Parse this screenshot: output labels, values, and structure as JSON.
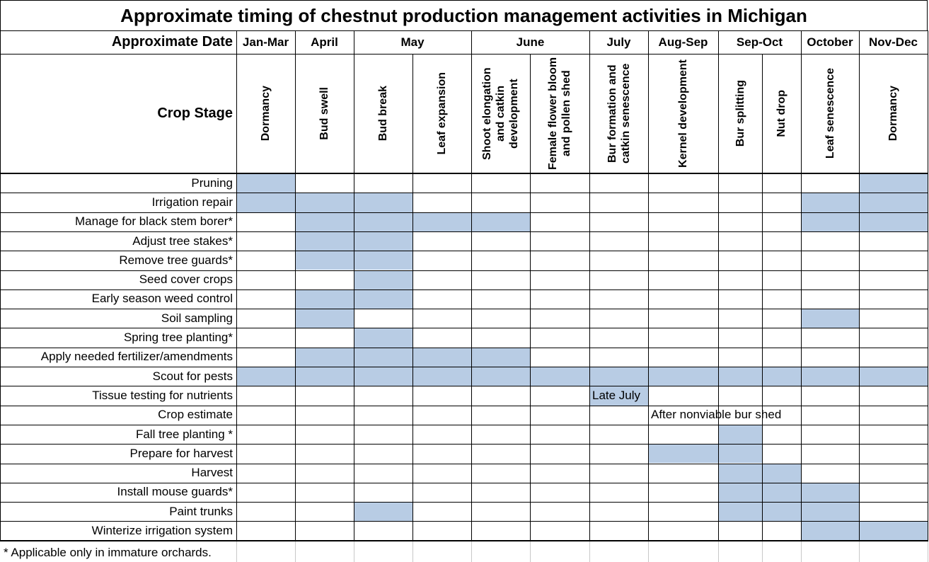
{
  "title": "Approximate timing of chestnut production management activities in Michigan",
  "header": {
    "date_label": "Approximate Date",
    "stage_label": "Crop Stage",
    "months": [
      "Jan-Mar",
      "April",
      "May",
      "June",
      "July",
      "Aug-Sep",
      "Sep-Oct",
      "October",
      "Nov-Dec"
    ],
    "stages": [
      "Dormancy",
      "Bud swell",
      "Bud break",
      "Leaf expansion",
      "Shoot elongation and catkin development",
      "Female flower bloom and pollen shed",
      "Bur formation and catkin senescence",
      "Kernel development",
      "Bur splitting",
      "Nut drop",
      "Leaf senescence",
      "Dormancy"
    ]
  },
  "activities": [
    {
      "label": "Pruning",
      "shaded": [
        [
          0,
          0
        ],
        [
          11,
          11
        ]
      ]
    },
    {
      "label": "Irrigation repair",
      "shaded": [
        [
          0,
          2
        ],
        [
          10,
          11
        ]
      ]
    },
    {
      "label": "Manage for black stem borer*",
      "shaded": [
        [
          1,
          4
        ],
        [
          10,
          11
        ]
      ]
    },
    {
      "label": "Adjust tree stakes*",
      "shaded": [
        [
          1,
          2
        ]
      ]
    },
    {
      "label": "Remove tree guards*",
      "shaded": [
        [
          1,
          2
        ]
      ]
    },
    {
      "label": "Seed cover crops",
      "shaded": [
        [
          2,
          2
        ]
      ]
    },
    {
      "label": "Early season weed control",
      "shaded": [
        [
          1,
          2
        ]
      ]
    },
    {
      "label": "Soil sampling",
      "shaded": [
        [
          1,
          1
        ],
        [
          10,
          10
        ]
      ]
    },
    {
      "label": "Spring tree planting*",
      "shaded": [
        [
          2,
          2
        ]
      ]
    },
    {
      "label": "Apply needed fertilizer/amendments",
      "shaded": [
        [
          1,
          4
        ]
      ]
    },
    {
      "label": "Scout for pests",
      "shaded": [
        [
          0,
          11
        ]
      ]
    },
    {
      "label": "Tissue testing for nutrients",
      "shaded": [
        [
          6,
          6
        ]
      ],
      "note": "Late July",
      "note_col": 6
    },
    {
      "label": "Crop estimate",
      "shaded": [],
      "note": "After nonviable bur shed",
      "note_col": 7
    },
    {
      "label": "Fall tree planting *",
      "shaded": [
        [
          8,
          8
        ]
      ]
    },
    {
      "label": "Prepare for harvest",
      "shaded": [
        [
          7,
          8
        ]
      ]
    },
    {
      "label": "Harvest",
      "shaded": [
        [
          8,
          9
        ]
      ]
    },
    {
      "label": "Install mouse guards*",
      "shaded": [
        [
          8,
          10
        ]
      ]
    },
    {
      "label": "Paint trunks",
      "shaded": [
        [
          2,
          2
        ],
        [
          8,
          10
        ]
      ]
    },
    {
      "label": "Winterize irrigation system",
      "shaded": [
        [
          10,
          11
        ]
      ]
    }
  ],
  "footnote": "* Applicable only in immature orchards.",
  "colors": {
    "shade": "#b8cce4",
    "grid": "#c8c8c8",
    "border": "#000000"
  }
}
